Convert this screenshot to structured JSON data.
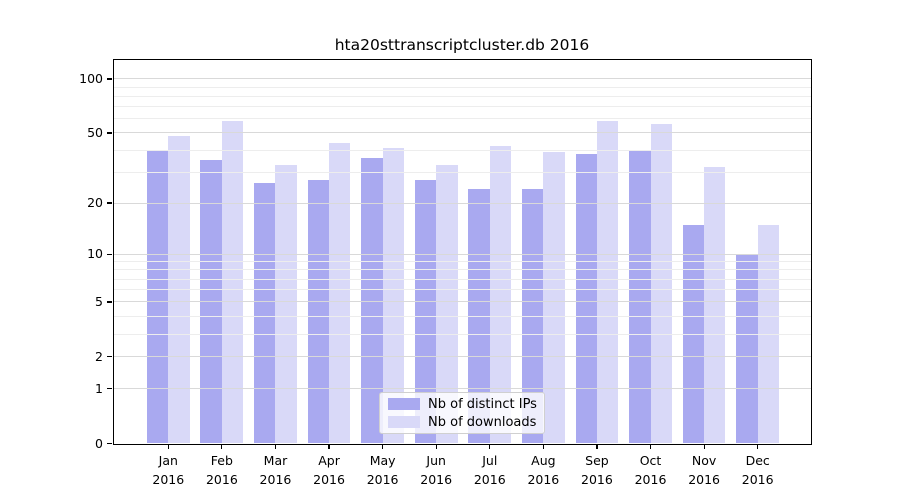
{
  "title": "hta20sttranscriptcluster.db 2016",
  "chart_data": {
    "type": "bar",
    "title": "hta20sttranscriptcluster.db 2016",
    "xlabel": "",
    "ylabel": "",
    "x_categories": [
      "Jan",
      "Feb",
      "Mar",
      "Apr",
      "May",
      "Jun",
      "Jul",
      "Aug",
      "Sep",
      "Oct",
      "Nov",
      "Dec"
    ],
    "x_year_line": "2016",
    "series": [
      {
        "name": "Nb of distinct IPs",
        "color": "#a9a9f0",
        "values": [
          40,
          35,
          26,
          27,
          36,
          27,
          24,
          24,
          38,
          40,
          15,
          10
        ]
      },
      {
        "name": "Nb of downloads",
        "color": "#d9d9f8",
        "values": [
          48,
          58,
          33,
          44,
          41,
          33,
          42,
          39,
          58,
          56,
          32,
          15
        ]
      }
    ],
    "yscale": "log1p",
    "ylim": [
      0,
      130
    ],
    "yticks_labeled": [
      0,
      1,
      2,
      5,
      10,
      20,
      50,
      100
    ],
    "yticks_minor": [
      3,
      4,
      6,
      7,
      8,
      9,
      30,
      40,
      60,
      70,
      80,
      90
    ],
    "grid": "major+minor horizontal, drawn above bars",
    "legend_position": "lower center",
    "colors": {
      "grid_major": "#d9d9d9",
      "grid_minor": "#ededed",
      "axis": "#000000",
      "background": "#ffffff"
    }
  }
}
